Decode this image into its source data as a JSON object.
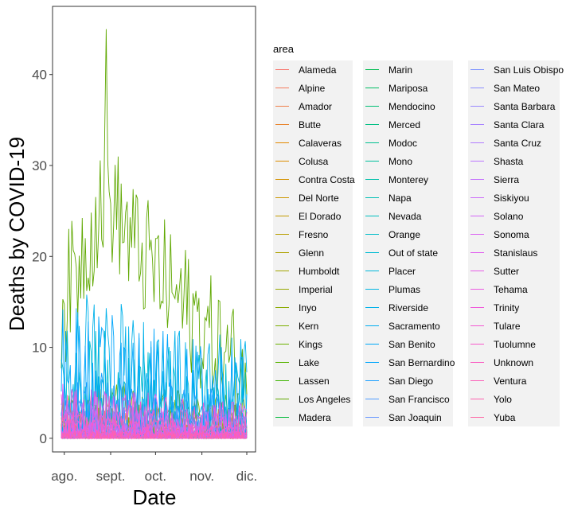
{
  "chart_data": {
    "type": "line",
    "xlabel": "Date",
    "ylabel": "Deaths by COVID-19",
    "x_ticks": [
      "ago.",
      "sept.",
      "oct.",
      "nov.",
      "dic."
    ],
    "x_range": [
      "2020-07-30",
      "2020-12-01"
    ],
    "y_ticks": [
      0,
      10,
      20,
      30,
      40
    ],
    "ylim": [
      -1.5,
      47.5
    ],
    "grid": false,
    "panel_border": true,
    "legend_title": "area",
    "legend_position": "right",
    "legend_columns": 3,
    "series": [
      {
        "name": "Alameda",
        "color": "#F8766D",
        "peak": 3.5
      },
      {
        "name": "Alpine",
        "color": "#F47A5C",
        "peak": 0.2
      },
      {
        "name": "Amador",
        "color": "#EF7F4A",
        "peak": 0.3
      },
      {
        "name": "Butte",
        "color": "#E9842C",
        "peak": 2
      },
      {
        "name": "Calaveras",
        "color": "#E38900",
        "peak": 0.3
      },
      {
        "name": "Colusa",
        "color": "#DC8E00",
        "peak": 0.3
      },
      {
        "name": "Contra Costa",
        "color": "#D49200",
        "peak": 3
      },
      {
        "name": "Del Norte",
        "color": "#CC9600",
        "peak": 0.3
      },
      {
        "name": "El Dorado",
        "color": "#C39A00",
        "peak": 0.5
      },
      {
        "name": "Fresno",
        "color": "#B99E00",
        "peak": 6
      },
      {
        "name": "Glenn",
        "color": "#AEA200",
        "peak": 0.3
      },
      {
        "name": "Humboldt",
        "color": "#A3A500",
        "peak": 0.5
      },
      {
        "name": "Imperial",
        "color": "#97A800",
        "peak": 4
      },
      {
        "name": "Inyo",
        "color": "#8AAB00",
        "peak": 0.3
      },
      {
        "name": "Kern",
        "color": "#7CAE00",
        "peak": 7
      },
      {
        "name": "Kings",
        "color": "#6BB100",
        "peak": 1.5
      },
      {
        "name": "Lake",
        "color": "#58B300",
        "peak": 0.5
      },
      {
        "name": "Lassen",
        "color": "#3EB500",
        "peak": 0.3
      },
      {
        "name": "Los Angeles",
        "color": "#5FA800",
        "peak": 45
      },
      {
        "name": "Madera",
        "color": "#00BA38",
        "peak": 1
      },
      {
        "name": "Marin",
        "color": "#00BC51",
        "peak": 1
      },
      {
        "name": "Mariposa",
        "color": "#00BD64",
        "peak": 0.2
      },
      {
        "name": "Mendocino",
        "color": "#00BE74",
        "peak": 0.5
      },
      {
        "name": "Merced",
        "color": "#00BF83",
        "peak": 2
      },
      {
        "name": "Modoc",
        "color": "#00C090",
        "peak": 0.2
      },
      {
        "name": "Mono",
        "color": "#00C09D",
        "peak": 0.2
      },
      {
        "name": "Monterey",
        "color": "#00C0A9",
        "peak": 2
      },
      {
        "name": "Napa",
        "color": "#00BFB4",
        "peak": 0.5
      },
      {
        "name": "Nevada",
        "color": "#00BEBF",
        "peak": 0.5
      },
      {
        "name": "Orange",
        "color": "#00BDC8",
        "peak": 13
      },
      {
        "name": "Out of state",
        "color": "#00BBD2",
        "peak": 0.2
      },
      {
        "name": "Placer",
        "color": "#00B8DB",
        "peak": 1
      },
      {
        "name": "Plumas",
        "color": "#00B5E3",
        "peak": 0.2
      },
      {
        "name": "Riverside",
        "color": "#00B1EA",
        "peak": 17
      },
      {
        "name": "Sacramento",
        "color": "#00ADF1",
        "peak": 5
      },
      {
        "name": "San Benito",
        "color": "#00A8F7",
        "peak": 0.3
      },
      {
        "name": "San Bernardino",
        "color": "#00A5FC",
        "peak": 15
      },
      {
        "name": "San Diego",
        "color": "#1A9FFF",
        "peak": 8
      },
      {
        "name": "San Francisco",
        "color": "#4F9BFF",
        "peak": 2
      },
      {
        "name": "San Joaquin",
        "color": "#6897FF",
        "peak": 5
      },
      {
        "name": "San Luis Obispo",
        "color": "#7C92FF",
        "peak": 1
      },
      {
        "name": "San Mateo",
        "color": "#8C8DFF",
        "peak": 2
      },
      {
        "name": "Santa Barbara",
        "color": "#9A88FF",
        "peak": 2
      },
      {
        "name": "Santa Clara",
        "color": "#A682FF",
        "peak": 4
      },
      {
        "name": "Santa Cruz",
        "color": "#B17CFF",
        "peak": 1
      },
      {
        "name": "Shasta",
        "color": "#BB76FF",
        "peak": 1
      },
      {
        "name": "Sierra",
        "color": "#C471FD",
        "peak": 0.2
      },
      {
        "name": "Siskiyou",
        "color": "#CC6BFA",
        "peak": 0.3
      },
      {
        "name": "Solano",
        "color": "#D466F7",
        "peak": 2
      },
      {
        "name": "Sonoma",
        "color": "#DB62F2",
        "peak": 2
      },
      {
        "name": "Stanislaus",
        "color": "#E15FEE",
        "peak": 6
      },
      {
        "name": "Sutter",
        "color": "#E75CE8",
        "peak": 1
      },
      {
        "name": "Tehama",
        "color": "#EC5AE2",
        "peak": 1
      },
      {
        "name": "Trinity",
        "color": "#F059DB",
        "peak": 0.2
      },
      {
        "name": "Tulare",
        "color": "#F459D3",
        "peak": 6
      },
      {
        "name": "Tuolumne",
        "color": "#F75ACB",
        "peak": 0.5
      },
      {
        "name": "Unknown",
        "color": "#FA5CC2",
        "peak": 0.5
      },
      {
        "name": "Ventura",
        "color": "#FC5FB9",
        "peak": 3
      },
      {
        "name": "Yolo",
        "color": "#FD62AF",
        "peak": 1
      },
      {
        "name": "Yuba",
        "color": "#FE67A4",
        "peak": 0.5
      }
    ]
  }
}
